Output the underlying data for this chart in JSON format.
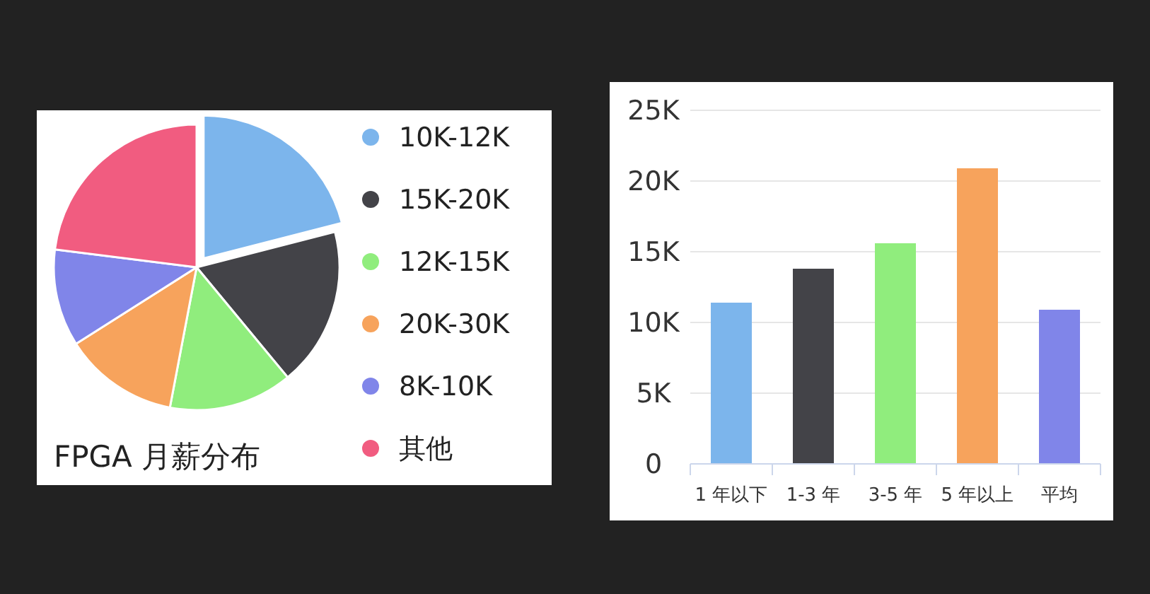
{
  "chart_data": [
    {
      "type": "pie",
      "title": "FPGA 月薪分布",
      "categories": [
        "10K-12K",
        "15K-20K",
        "12K-15K",
        "20K-30K",
        "8K-10K",
        "其他"
      ],
      "values": [
        21,
        18,
        14,
        13,
        11,
        23
      ],
      "colors": [
        "#7cb5ec",
        "#434348",
        "#90ed7d",
        "#f7a35c",
        "#8085e9",
        "#f15c80"
      ],
      "legend": "right"
    },
    {
      "type": "bar",
      "categories": [
        "1 年以下",
        "1-3 年",
        "3-5 年",
        "5 年以上",
        "平均"
      ],
      "values": [
        11.4,
        13.8,
        15.6,
        20.9,
        10.9
      ],
      "colors": [
        "#7cb5ec",
        "#434348",
        "#90ed7d",
        "#f7a35c",
        "#8085e9"
      ],
      "ylim": [
        0,
        25
      ],
      "yticks": [
        0,
        {
          "value": 5,
          "label": "5K"
        },
        {
          "value": 10,
          "label": "10K"
        },
        {
          "value": 15,
          "label": "15K"
        },
        {
          "value": 20,
          "label": "20K"
        },
        {
          "value": 25,
          "label": "25K"
        }
      ],
      "grid": "y"
    }
  ]
}
